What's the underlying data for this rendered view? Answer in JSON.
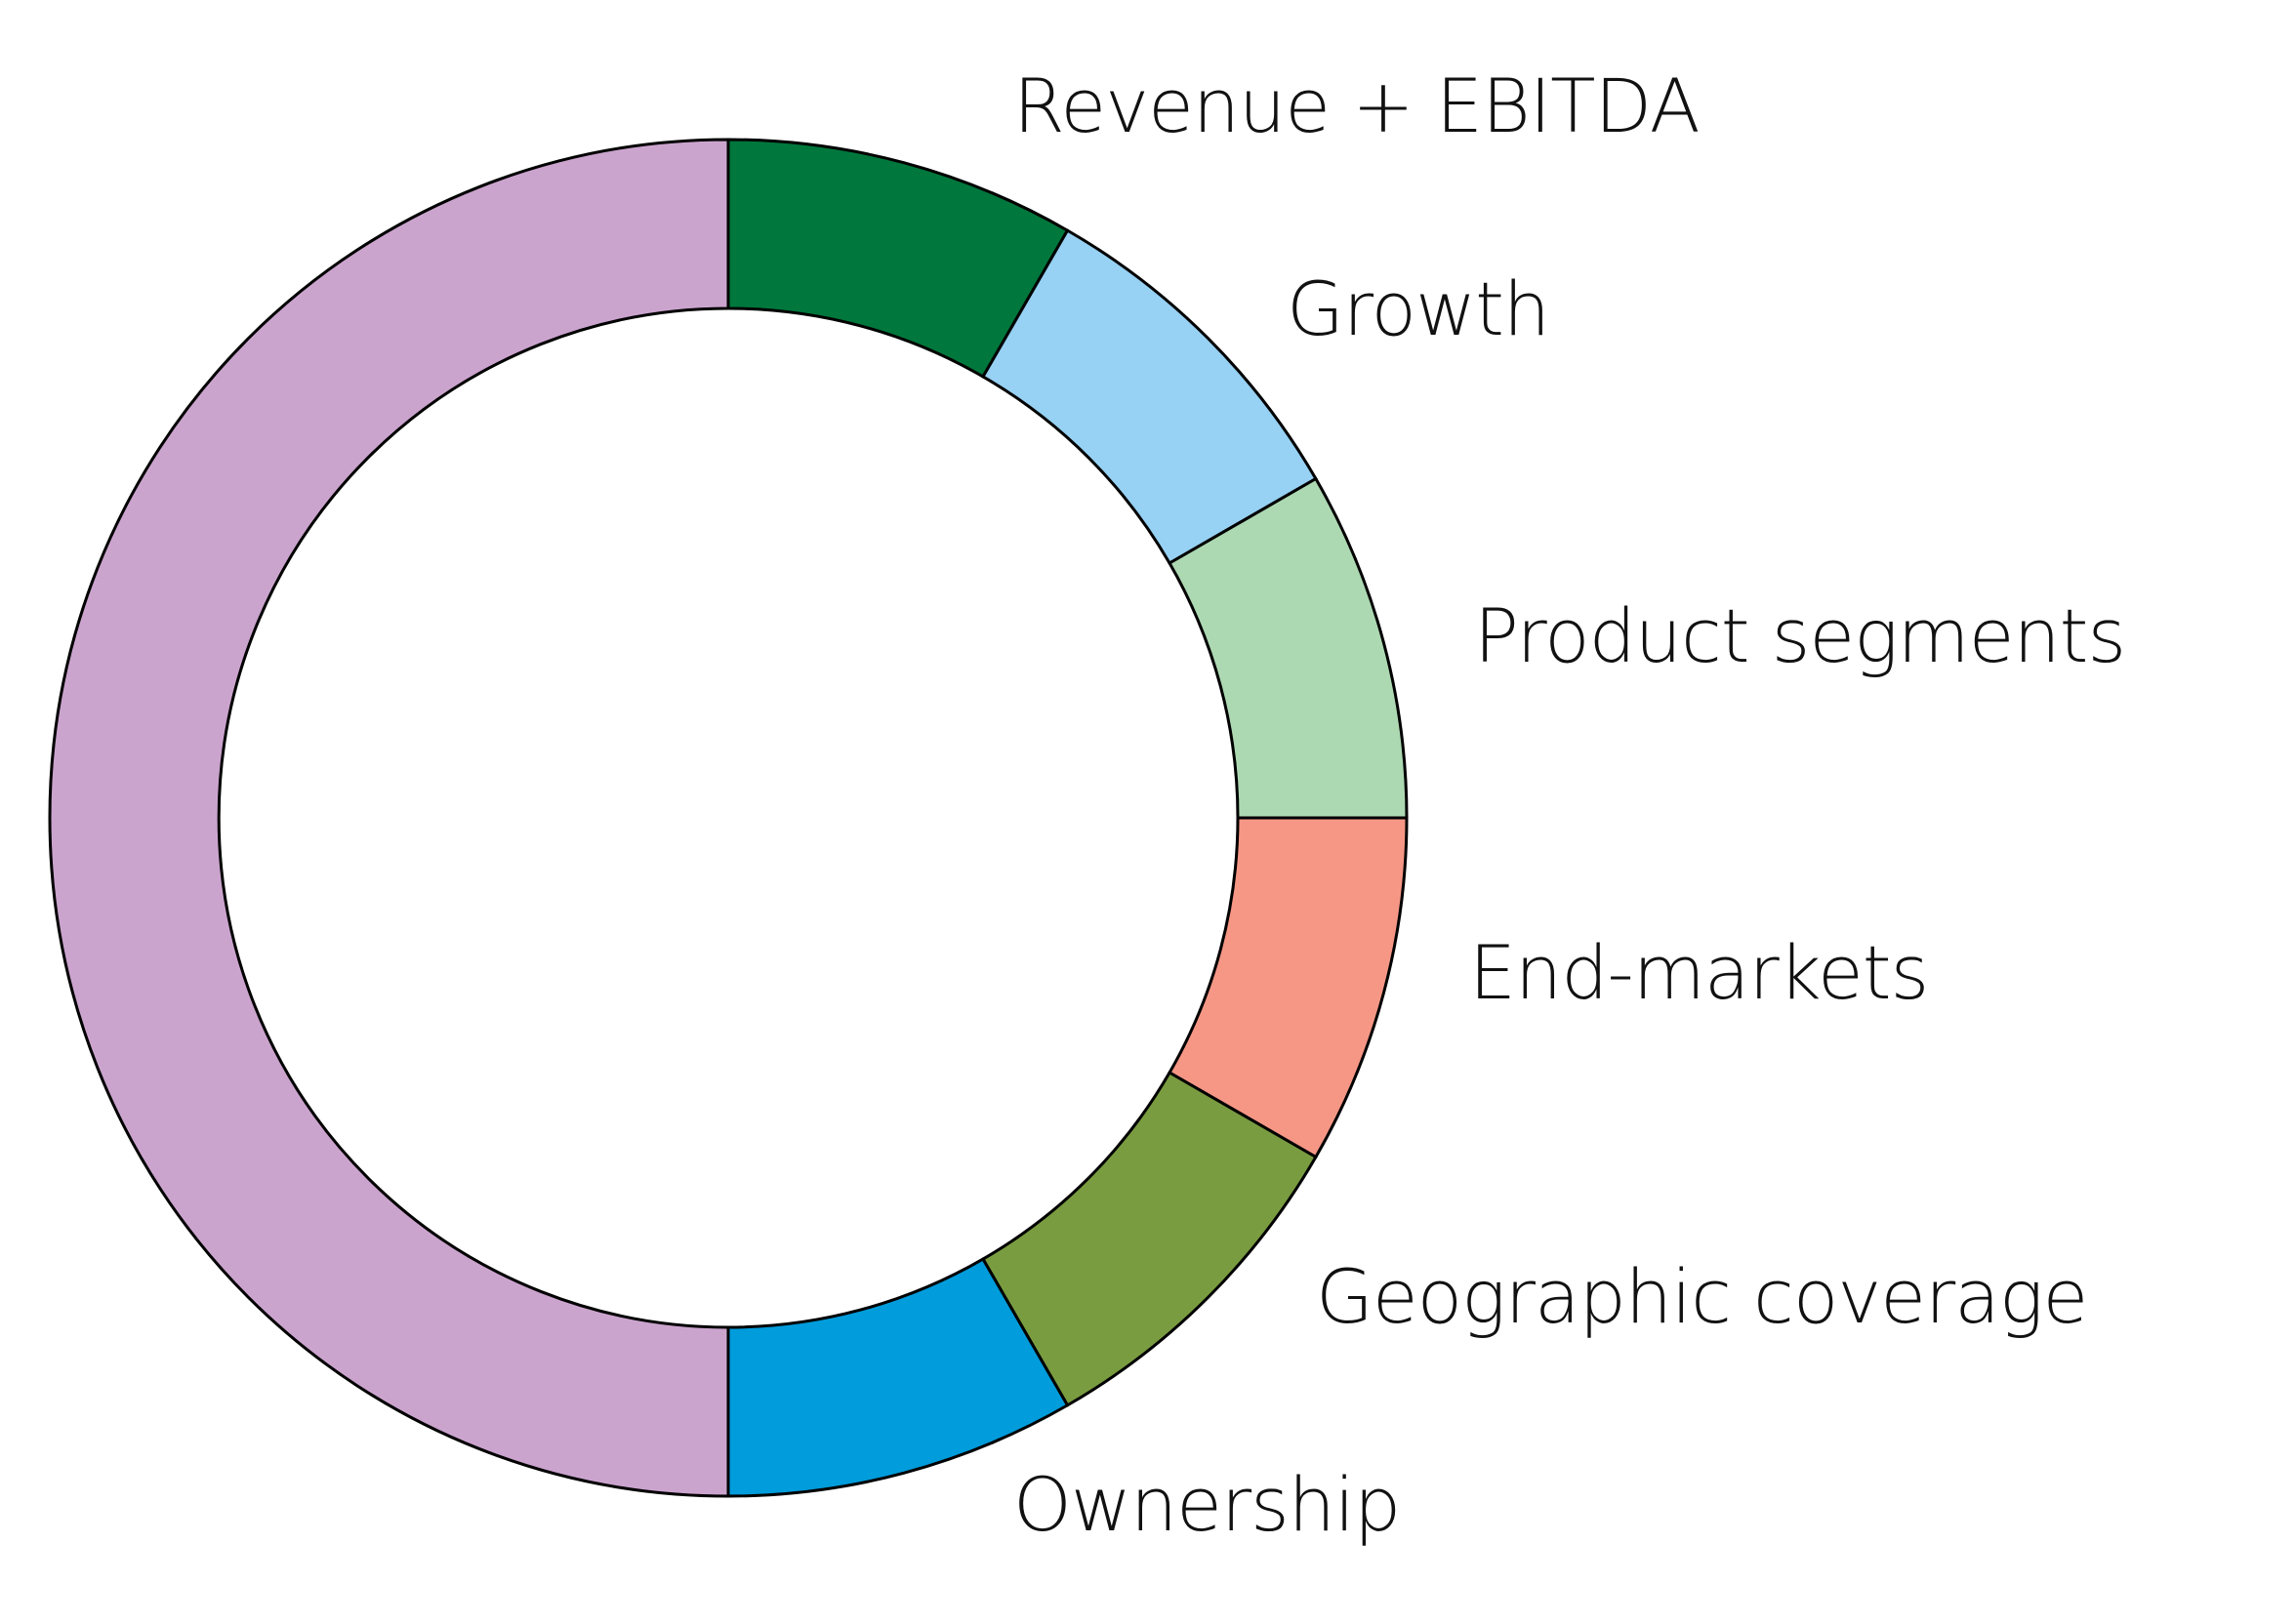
{
  "chart_data": {
    "type": "pie",
    "variant": "donut",
    "title": "",
    "segments": [
      {
        "label": "Revenue + EBITDA",
        "value": 30,
        "color": "#00773C"
      },
      {
        "label": "Growth",
        "value": 30,
        "color": "#97D1F3"
      },
      {
        "label": "Product segments",
        "value": 30,
        "color": "#ADD9B2"
      },
      {
        "label": "End-markets",
        "value": 30,
        "color": "#F69786"
      },
      {
        "label": "Geographic coverage",
        "value": 30,
        "color": "#7A9C41"
      },
      {
        "label": "Ownership",
        "value": 30,
        "color": "#009CDB"
      },
      {
        "label": "",
        "value": 180,
        "color": "#CBA4CE"
      }
    ],
    "start": "top",
    "direction": "clockwise",
    "legend": "none",
    "labels": "outside-right"
  }
}
